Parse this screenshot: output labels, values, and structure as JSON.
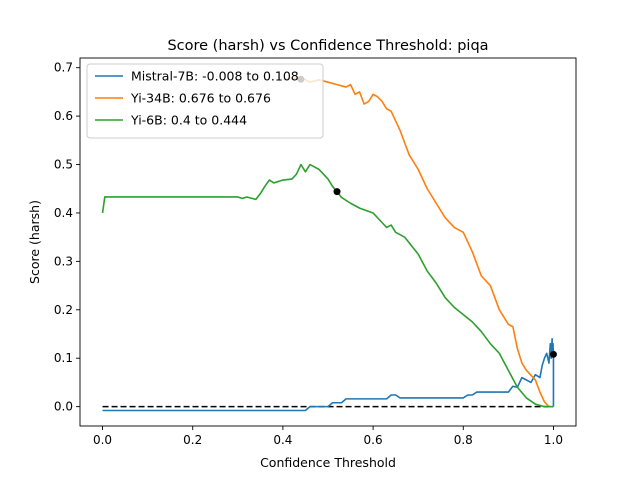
{
  "chart_data": {
    "type": "line",
    "title": "Score (harsh) vs Confidence Threshold: piqa",
    "xlabel": "Confidence Threshold",
    "ylabel": "Score (harsh)",
    "xlim": [
      -0.05,
      1.05
    ],
    "ylim": [
      -0.04,
      0.72
    ],
    "x_ticks": [
      0.0,
      0.2,
      0.4,
      0.6,
      0.8,
      1.0
    ],
    "x_tick_labels": [
      "0.0",
      "0.2",
      "0.4",
      "0.6",
      "0.8",
      "1.0"
    ],
    "y_ticks": [
      0.0,
      0.1,
      0.2,
      0.3,
      0.4,
      0.5,
      0.6,
      0.7
    ],
    "y_tick_labels": [
      "0.0",
      "0.1",
      "0.2",
      "0.3",
      "0.4",
      "0.5",
      "0.6",
      "0.7"
    ],
    "grid": false,
    "legend_position": "top-left",
    "reference_line": {
      "y": 0.0,
      "style": "dashed",
      "color": "#000000"
    },
    "series": [
      {
        "name": "Mistral-7B: -0.008 to 0.108",
        "color": "#1f77b4",
        "x": [
          0.0,
          0.1,
          0.2,
          0.3,
          0.4,
          0.45,
          0.46,
          0.5,
          0.51,
          0.53,
          0.54,
          0.56,
          0.57,
          0.6,
          0.63,
          0.64,
          0.65,
          0.66,
          0.7,
          0.75,
          0.8,
          0.81,
          0.82,
          0.83,
          0.85,
          0.88,
          0.9,
          0.91,
          0.92,
          0.93,
          0.94,
          0.95,
          0.96,
          0.97,
          0.975,
          0.98,
          0.985,
          0.99,
          0.993,
          0.995,
          0.997,
          0.998,
          0.999,
          1.0,
          1.0
        ],
        "y": [
          -0.008,
          -0.008,
          -0.008,
          -0.008,
          -0.008,
          -0.008,
          0.0,
          0.0,
          0.008,
          0.008,
          0.016,
          0.016,
          0.016,
          0.016,
          0.016,
          0.024,
          0.024,
          0.018,
          0.018,
          0.018,
          0.018,
          0.024,
          0.024,
          0.03,
          0.03,
          0.03,
          0.03,
          0.042,
          0.04,
          0.06,
          0.055,
          0.05,
          0.066,
          0.06,
          0.085,
          0.1,
          0.11,
          0.09,
          0.13,
          0.1,
          0.14,
          0.11,
          0.13,
          0.108,
          0.0
        ]
      },
      {
        "name": "Yi-34B: 0.676 to 0.676",
        "color": "#ff7f0e",
        "x": [
          0.4,
          0.44,
          0.46,
          0.48,
          0.5,
          0.52,
          0.54,
          0.55,
          0.56,
          0.57,
          0.58,
          0.59,
          0.6,
          0.61,
          0.62,
          0.63,
          0.64,
          0.65,
          0.66,
          0.68,
          0.7,
          0.72,
          0.74,
          0.76,
          0.78,
          0.8,
          0.82,
          0.84,
          0.86,
          0.88,
          0.9,
          0.91,
          0.92,
          0.93,
          0.94,
          0.95,
          0.96,
          0.97,
          0.98,
          0.99,
          1.0
        ],
        "y": [
          0.676,
          0.68,
          0.67,
          0.675,
          0.67,
          0.665,
          0.66,
          0.665,
          0.645,
          0.65,
          0.625,
          0.63,
          0.645,
          0.64,
          0.63,
          0.615,
          0.61,
          0.59,
          0.57,
          0.52,
          0.49,
          0.45,
          0.42,
          0.39,
          0.37,
          0.36,
          0.32,
          0.27,
          0.25,
          0.2,
          0.17,
          0.165,
          0.12,
          0.09,
          0.075,
          0.065,
          0.055,
          0.03,
          0.01,
          0.0,
          0.0
        ]
      },
      {
        "name": "Yi-6B: 0.4 to 0.444",
        "color": "#2ca02c",
        "x": [
          0.0,
          0.005,
          0.05,
          0.1,
          0.15,
          0.2,
          0.25,
          0.3,
          0.31,
          0.32,
          0.34,
          0.35,
          0.36,
          0.37,
          0.38,
          0.4,
          0.42,
          0.43,
          0.44,
          0.45,
          0.46,
          0.47,
          0.48,
          0.49,
          0.5,
          0.51,
          0.52,
          0.53,
          0.55,
          0.57,
          0.6,
          0.62,
          0.63,
          0.64,
          0.65,
          0.67,
          0.7,
          0.72,
          0.74,
          0.76,
          0.78,
          0.8,
          0.82,
          0.84,
          0.86,
          0.88,
          0.9,
          0.92,
          0.94,
          0.96,
          0.98,
          1.0
        ],
        "y": [
          0.4,
          0.433,
          0.433,
          0.433,
          0.433,
          0.433,
          0.433,
          0.433,
          0.43,
          0.433,
          0.428,
          0.44,
          0.455,
          0.468,
          0.462,
          0.468,
          0.47,
          0.48,
          0.5,
          0.485,
          0.5,
          0.495,
          0.49,
          0.48,
          0.47,
          0.455,
          0.444,
          0.432,
          0.42,
          0.41,
          0.4,
          0.38,
          0.37,
          0.375,
          0.36,
          0.35,
          0.315,
          0.28,
          0.255,
          0.225,
          0.205,
          0.19,
          0.175,
          0.155,
          0.13,
          0.11,
          0.075,
          0.04,
          0.018,
          0.005,
          0.0,
          0.0
        ]
      }
    ],
    "markers": [
      {
        "x": 0.44,
        "y": 0.676,
        "color": "#000000"
      },
      {
        "x": 0.52,
        "y": 0.444,
        "color": "#000000"
      },
      {
        "x": 1.0,
        "y": 0.108,
        "color": "#000000"
      }
    ]
  }
}
